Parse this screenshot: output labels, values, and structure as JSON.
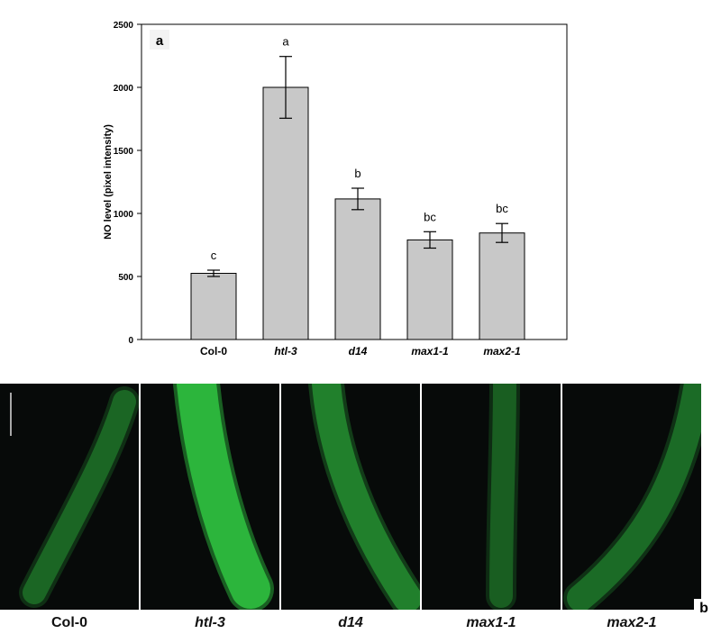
{
  "chart_data": {
    "type": "bar",
    "panel_letter": "a",
    "ylabel": "NO level (pixel intensity)",
    "xlabel": "",
    "ylim": [
      0,
      2500
    ],
    "yticks": [
      0,
      500,
      1000,
      1500,
      2000,
      2500
    ],
    "categories": [
      "Col-0",
      "htl-3",
      "d14",
      "max1-1",
      "max2-1"
    ],
    "italic_categories": [
      false,
      true,
      true,
      true,
      true
    ],
    "values": [
      525,
      2000,
      1115,
      790,
      845
    ],
    "errors": [
      25,
      245,
      85,
      65,
      75
    ],
    "significance_letters": [
      "c",
      "a",
      "b",
      "bc",
      "bc"
    ],
    "bar_color": "#c8c8c8",
    "grid": false
  },
  "image_panels": {
    "panel_letter": "b",
    "labels": [
      "Col-0",
      "htl-3",
      "d14",
      "max1-1",
      "max2-1"
    ],
    "italic_labels": [
      false,
      true,
      true,
      true,
      true
    ],
    "fluorescence_levels": [
      0.25,
      1.0,
      0.45,
      0.2,
      0.3
    ],
    "fluorescence_color": "#2fbf3f"
  }
}
